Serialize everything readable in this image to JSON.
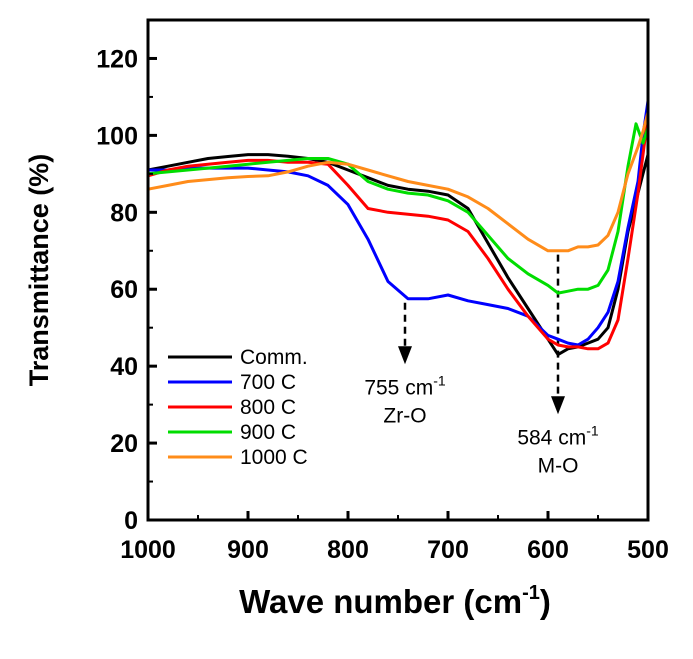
{
  "chart_data": {
    "type": "line",
    "xlabel": "Wave number (cm",
    "xlabel_sup": "-1",
    "xlabel_end": ")",
    "ylabel": "Transmittance (%)",
    "xlim": [
      1000,
      500
    ],
    "ylim": [
      0,
      130
    ],
    "x_ticks": [
      "1000",
      "900",
      "800",
      "700",
      "600",
      "500"
    ],
    "y_ticks": [
      "0",
      "20",
      "40",
      "60",
      "80",
      "100",
      "120"
    ],
    "series": [
      {
        "name": "Comm.",
        "color": "#000000",
        "points": [
          [
            1000,
            91
          ],
          [
            980,
            92
          ],
          [
            960,
            93
          ],
          [
            940,
            94
          ],
          [
            920,
            94.5
          ],
          [
            900,
            95
          ],
          [
            880,
            95
          ],
          [
            860,
            94.6
          ],
          [
            840,
            94
          ],
          [
            820,
            93
          ],
          [
            800,
            91
          ],
          [
            780,
            89
          ],
          [
            760,
            87
          ],
          [
            740,
            86
          ],
          [
            720,
            85.5
          ],
          [
            700,
            84.5
          ],
          [
            680,
            81
          ],
          [
            660,
            72
          ],
          [
            640,
            63
          ],
          [
            620,
            55
          ],
          [
            600,
            47
          ],
          [
            590,
            43
          ],
          [
            580,
            44.5
          ],
          [
            570,
            45
          ],
          [
            560,
            46
          ],
          [
            550,
            47
          ],
          [
            540,
            50
          ],
          [
            530,
            60
          ],
          [
            520,
            75
          ],
          [
            510,
            85
          ],
          [
            505,
            90
          ],
          [
            500,
            95
          ]
        ]
      },
      {
        "name": "700 C",
        "color": "#0000ff",
        "points": [
          [
            1000,
            91
          ],
          [
            980,
            91
          ],
          [
            960,
            91.5
          ],
          [
            940,
            91.5
          ],
          [
            920,
            91.5
          ],
          [
            900,
            91.5
          ],
          [
            880,
            91
          ],
          [
            860,
            90.5
          ],
          [
            840,
            89.5
          ],
          [
            820,
            87
          ],
          [
            800,
            82
          ],
          [
            780,
            73
          ],
          [
            760,
            62
          ],
          [
            740,
            57.5
          ],
          [
            720,
            57.5
          ],
          [
            700,
            58.5
          ],
          [
            680,
            57
          ],
          [
            660,
            56
          ],
          [
            640,
            55
          ],
          [
            620,
            53
          ],
          [
            600,
            48
          ],
          [
            590,
            47
          ],
          [
            580,
            46
          ],
          [
            570,
            45.5
          ],
          [
            560,
            47
          ],
          [
            550,
            50
          ],
          [
            540,
            54
          ],
          [
            530,
            62
          ],
          [
            520,
            76
          ],
          [
            510,
            88
          ],
          [
            505,
            100
          ],
          [
            500,
            109
          ]
        ]
      },
      {
        "name": "800 C",
        "color": "#ff0000",
        "points": [
          [
            1000,
            89.5
          ],
          [
            980,
            91
          ],
          [
            960,
            92
          ],
          [
            940,
            92.5
          ],
          [
            920,
            93
          ],
          [
            900,
            93.5
          ],
          [
            880,
            93.5
          ],
          [
            860,
            93
          ],
          [
            840,
            93
          ],
          [
            820,
            92.5
          ],
          [
            800,
            87
          ],
          [
            780,
            81
          ],
          [
            760,
            80
          ],
          [
            740,
            79.5
          ],
          [
            720,
            79
          ],
          [
            700,
            78
          ],
          [
            680,
            75
          ],
          [
            660,
            68
          ],
          [
            640,
            60
          ],
          [
            620,
            53
          ],
          [
            600,
            47
          ],
          [
            590,
            45.5
          ],
          [
            580,
            45
          ],
          [
            570,
            45
          ],
          [
            560,
            44.5
          ],
          [
            550,
            44.5
          ],
          [
            540,
            46
          ],
          [
            530,
            52
          ],
          [
            520,
            68
          ],
          [
            510,
            85
          ],
          [
            505,
            95
          ],
          [
            500,
            105
          ]
        ]
      },
      {
        "name": "900 C",
        "color": "#00dd00",
        "points": [
          [
            1000,
            90
          ],
          [
            980,
            90.5
          ],
          [
            960,
            91
          ],
          [
            940,
            91.5
          ],
          [
            920,
            92
          ],
          [
            900,
            92.5
          ],
          [
            880,
            93
          ],
          [
            860,
            93.5
          ],
          [
            840,
            94
          ],
          [
            820,
            94
          ],
          [
            800,
            92.5
          ],
          [
            780,
            88
          ],
          [
            760,
            86
          ],
          [
            740,
            85
          ],
          [
            720,
            84.5
          ],
          [
            700,
            83
          ],
          [
            680,
            80
          ],
          [
            660,
            74
          ],
          [
            640,
            68
          ],
          [
            620,
            64
          ],
          [
            600,
            61
          ],
          [
            590,
            59
          ],
          [
            580,
            59.5
          ],
          [
            570,
            60
          ],
          [
            560,
            60
          ],
          [
            550,
            61
          ],
          [
            540,
            65
          ],
          [
            530,
            75
          ],
          [
            520,
            92
          ],
          [
            512,
            103
          ],
          [
            505,
            98
          ],
          [
            500,
            102
          ]
        ]
      },
      {
        "name": "1000 C",
        "color": "#ff8c1a",
        "points": [
          [
            1000,
            86
          ],
          [
            980,
            87
          ],
          [
            960,
            88
          ],
          [
            940,
            88.5
          ],
          [
            920,
            89
          ],
          [
            900,
            89.3
          ],
          [
            880,
            89.5
          ],
          [
            860,
            90.5
          ],
          [
            840,
            92
          ],
          [
            820,
            93
          ],
          [
            800,
            92.5
          ],
          [
            780,
            91
          ],
          [
            760,
            89.5
          ],
          [
            740,
            88
          ],
          [
            720,
            87
          ],
          [
            700,
            86
          ],
          [
            680,
            84
          ],
          [
            660,
            81
          ],
          [
            640,
            77
          ],
          [
            620,
            73
          ],
          [
            600,
            70
          ],
          [
            590,
            70
          ],
          [
            580,
            70
          ],
          [
            570,
            71
          ],
          [
            560,
            71
          ],
          [
            550,
            71.5
          ],
          [
            540,
            74
          ],
          [
            530,
            80
          ],
          [
            520,
            90
          ],
          [
            510,
            97
          ],
          [
            505,
            101
          ],
          [
            500,
            106
          ]
        ]
      }
    ],
    "annotations": [
      {
        "label": "755 cm",
        "sup": "-1",
        "sub": "Zr-O",
        "x": 743,
        "arrow_from_y": 56.5,
        "arrow_to_y": 41
      },
      {
        "label": "584 cm",
        "sup": "-1",
        "sub": "M-O",
        "x": 590,
        "arrow_from_y": 69,
        "arrow_to_y": 28
      }
    ]
  }
}
